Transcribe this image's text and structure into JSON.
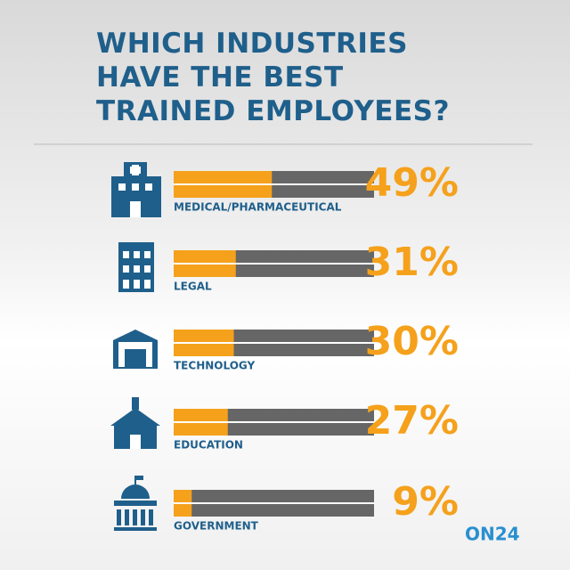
{
  "chart_data": {
    "type": "bar",
    "title": "WHICH INDUSTRIES HAVE THE BEST TRAINED EMPLOYEES?",
    "categories": [
      "MEDICAL/PHARMACEUTICAL",
      "LEGAL",
      "TECHNOLOGY",
      "EDUCATION",
      "GOVERNMENT"
    ],
    "values": [
      49,
      31,
      30,
      27,
      9
    ],
    "value_labels": [
      "49%",
      "31%",
      "30%",
      "27%",
      "9%"
    ],
    "color": "#f5a11c",
    "track_color": "#666666",
    "xlim": [
      0,
      100
    ],
    "brand": "ON24"
  }
}
